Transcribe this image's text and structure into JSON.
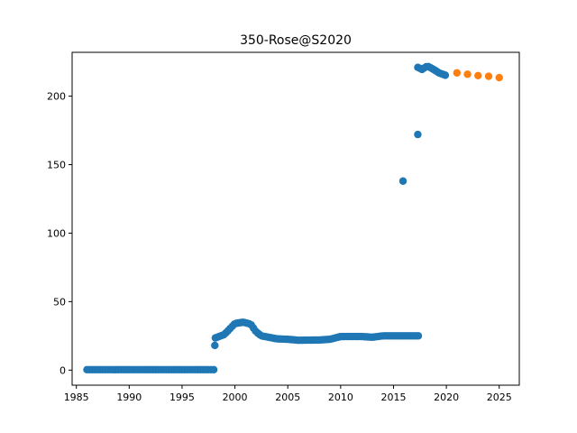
{
  "chart_data": {
    "type": "scatter",
    "title": "350-Rose@S2020",
    "xlabel": "",
    "ylabel": "",
    "xlim": [
      1984.6,
      2026.9
    ],
    "ylim": [
      -11,
      232
    ],
    "x_ticks": [
      1985,
      1990,
      1995,
      2000,
      2005,
      2010,
      2015,
      2020,
      2025
    ],
    "y_ticks": [
      0,
      50,
      100,
      150,
      200
    ],
    "grid": false,
    "legend": "none",
    "series": [
      {
        "color": "#1f77b4",
        "segments": [
          {
            "x_start": 1986.0,
            "x_end": 1998.0,
            "step": 0.25,
            "y": [
              [
                1986.0,
                0.3
              ],
              [
                1998.0,
                0.3
              ]
            ]
          },
          {
            "x_start": 1998.15,
            "x_end": 2017.5,
            "step": 0.2,
            "y": [
              [
                1998.15,
                23.5
              ],
              [
                1999.0,
                26
              ],
              [
                1999.5,
                30
              ],
              [
                2000.0,
                34
              ],
              [
                2000.8,
                35
              ],
              [
                2001.5,
                33.5
              ],
              [
                2002.0,
                28
              ],
              [
                2002.5,
                25
              ],
              [
                2004.0,
                22.8
              ],
              [
                2005.0,
                22.5
              ],
              [
                2006.0,
                21.8
              ],
              [
                2008.0,
                22
              ],
              [
                2009.0,
                22.5
              ],
              [
                2010.0,
                24.5
              ],
              [
                2012.0,
                24.5
              ],
              [
                2013.0,
                24
              ],
              [
                2014.0,
                25
              ],
              [
                2016.0,
                25
              ],
              [
                2017.5,
                25
              ]
            ]
          },
          {
            "x_start": 2017.3,
            "x_end": 2020.0,
            "step": 0.2,
            "y": [
              [
                2017.3,
                221
              ],
              [
                2017.7,
                219.5
              ],
              [
                2018.2,
                222
              ],
              [
                2018.8,
                219.5
              ],
              [
                2019.3,
                217
              ],
              [
                2020.0,
                215
              ]
            ]
          }
        ],
        "points": [
          [
            1998.1,
            18
          ],
          [
            2015.9,
            138
          ],
          [
            2017.3,
            172
          ]
        ]
      },
      {
        "color": "#ff7f0e",
        "points": [
          [
            2021,
            217
          ],
          [
            2022,
            216
          ],
          [
            2023,
            215
          ],
          [
            2024,
            214.5
          ],
          [
            2025,
            213.5
          ]
        ]
      }
    ]
  }
}
